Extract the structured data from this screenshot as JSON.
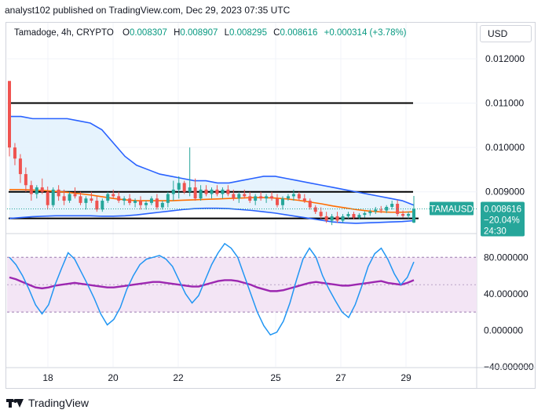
{
  "header": {
    "publisher": "analyst102 published on TradingView.com, Dec 29, 2023 07:35 UTC"
  },
  "legend": {
    "symbol": "Tamadoge, 4h, CRYPTO",
    "o_label": "O",
    "o_value": "0.008307",
    "h_label": "H",
    "h_value": "0.008907",
    "l_label": "L",
    "l_value": "0.008295",
    "c_label": "C",
    "c_value": "0.008616",
    "change": "+0.000314 (+3.78%)"
  },
  "currency_button": "USD",
  "footer": {
    "brand": "TradingView"
  },
  "colors": {
    "bull": "#26a69a",
    "bear": "#ef5350",
    "bb_band": "#2962ff",
    "bb_basis": "#ff6d00",
    "bb_fill": "#e3f2fd",
    "stoch_k": "#2196f3",
    "stoch_d": "#9c27b0",
    "rsi_fill": "#f3e5f5",
    "badge": "#26a69a"
  },
  "chart_data": [
    {
      "type": "candlestick",
      "symbol": "TAMAUSD",
      "y_axis": {
        "min": 0.0082,
        "max": 0.0123,
        "ticks": [
          "0.012000",
          "0.011000",
          "0.010000",
          "0.009000"
        ]
      },
      "x_axis": {
        "ticks": [
          "18",
          "20",
          "22",
          "25",
          "27",
          "29"
        ]
      },
      "price_badge": {
        "symbol": "TAMAUSD",
        "price": "0.008616",
        "change": "−20.04%",
        "countdown": "24:30"
      },
      "horizontal_lines": [
        0.011,
        0.009,
        0.0084
      ],
      "candles": [
        [
          0.0115,
          0.01149,
          0.0098,
          0.01
        ],
        [
          0.01,
          0.0101,
          0.0096,
          0.00975
        ],
        [
          0.00975,
          0.00985,
          0.0092,
          0.0094
        ],
        [
          0.0094,
          0.00955,
          0.009,
          0.00915
        ],
        [
          0.00915,
          0.00925,
          0.0088,
          0.00895
        ],
        [
          0.00895,
          0.00915,
          0.00885,
          0.0091
        ],
        [
          0.0091,
          0.0093,
          0.00895,
          0.009
        ],
        [
          0.009,
          0.00912,
          0.0086,
          0.0087
        ],
        [
          0.0087,
          0.0091,
          0.00865,
          0.00905
        ],
        [
          0.00905,
          0.00915,
          0.0088,
          0.0089
        ],
        [
          0.0089,
          0.00905,
          0.0087,
          0.0088
        ],
        [
          0.0088,
          0.009,
          0.00875,
          0.00895
        ],
        [
          0.00895,
          0.0091,
          0.00885,
          0.0089
        ],
        [
          0.0089,
          0.009,
          0.0087,
          0.00875
        ],
        [
          0.00875,
          0.0089,
          0.0086,
          0.00885
        ],
        [
          0.00885,
          0.009,
          0.00875,
          0.0088
        ],
        [
          0.0088,
          0.0089,
          0.00855,
          0.0086
        ],
        [
          0.0086,
          0.00885,
          0.00855,
          0.0088
        ],
        [
          0.0088,
          0.009,
          0.00875,
          0.00895
        ],
        [
          0.00895,
          0.00905,
          0.00885,
          0.0089
        ],
        [
          0.0089,
          0.009,
          0.00875,
          0.0088
        ],
        [
          0.0088,
          0.0089,
          0.0087,
          0.00885
        ],
        [
          0.00885,
          0.00895,
          0.0087,
          0.00875
        ],
        [
          0.00875,
          0.00885,
          0.00865,
          0.0088
        ],
        [
          0.0088,
          0.0089,
          0.0086,
          0.0087
        ],
        [
          0.0087,
          0.0088,
          0.0086,
          0.00875
        ],
        [
          0.00875,
          0.0089,
          0.0087,
          0.00885
        ],
        [
          0.00885,
          0.00895,
          0.0086,
          0.00865
        ],
        [
          0.00865,
          0.0088,
          0.0086,
          0.00875
        ],
        [
          0.00875,
          0.009,
          0.00865,
          0.00895
        ],
        [
          0.00895,
          0.00925,
          0.0088,
          0.00905
        ],
        [
          0.00905,
          0.00935,
          0.00885,
          0.0092
        ],
        [
          0.0092,
          0.00925,
          0.00895,
          0.009
        ],
        [
          0.009,
          0.01,
          0.0089,
          0.0091
        ],
        [
          0.0091,
          0.0093,
          0.0088,
          0.00885
        ],
        [
          0.00885,
          0.00915,
          0.0088,
          0.00905
        ],
        [
          0.00905,
          0.00915,
          0.0089,
          0.00895
        ],
        [
          0.00895,
          0.0091,
          0.00885,
          0.00905
        ],
        [
          0.00905,
          0.00915,
          0.0089,
          0.00895
        ],
        [
          0.00895,
          0.0091,
          0.00885,
          0.00905
        ],
        [
          0.00905,
          0.00915,
          0.0089,
          0.00895
        ],
        [
          0.00895,
          0.00905,
          0.0088,
          0.00885
        ],
        [
          0.00885,
          0.009,
          0.00875,
          0.00895
        ],
        [
          0.00895,
          0.00905,
          0.00885,
          0.0089
        ],
        [
          0.0089,
          0.009,
          0.00875,
          0.0088
        ],
        [
          0.0088,
          0.00895,
          0.0087,
          0.0089
        ],
        [
          0.0089,
          0.009,
          0.0088,
          0.00885
        ],
        [
          0.00885,
          0.00895,
          0.00875,
          0.0089
        ],
        [
          0.0089,
          0.009,
          0.0088,
          0.00885
        ],
        [
          0.00885,
          0.00895,
          0.00865,
          0.0087
        ],
        [
          0.0087,
          0.0089,
          0.0086,
          0.00885
        ],
        [
          0.00885,
          0.00895,
          0.0088,
          0.0089
        ],
        [
          0.0089,
          0.00905,
          0.0088,
          0.00895
        ],
        [
          0.00895,
          0.009,
          0.0088,
          0.00885
        ],
        [
          0.00885,
          0.00895,
          0.00875,
          0.0088
        ],
        [
          0.0088,
          0.00885,
          0.0086,
          0.00865
        ],
        [
          0.00865,
          0.0087,
          0.0085,
          0.00855
        ],
        [
          0.00855,
          0.00865,
          0.0084,
          0.00845
        ],
        [
          0.00845,
          0.00855,
          0.0083,
          0.00835
        ],
        [
          0.00835,
          0.0085,
          0.00825,
          0.00845
        ],
        [
          0.00845,
          0.00855,
          0.0083,
          0.00835
        ],
        [
          0.00835,
          0.0085,
          0.0083,
          0.00845
        ],
        [
          0.00845,
          0.00855,
          0.0084,
          0.0085
        ],
        [
          0.0085,
          0.00855,
          0.00838,
          0.00842
        ],
        [
          0.00842,
          0.00852,
          0.00838,
          0.00848
        ],
        [
          0.00848,
          0.00856,
          0.00842,
          0.00852
        ],
        [
          0.00852,
          0.0086,
          0.00846,
          0.00856
        ],
        [
          0.00856,
          0.00866,
          0.0085,
          0.0086
        ],
        [
          0.0086,
          0.00868,
          0.00852,
          0.00858
        ],
        [
          0.00858,
          0.0087,
          0.00852,
          0.00866
        ],
        [
          0.00866,
          0.0088,
          0.0086,
          0.00873
        ],
        [
          0.00873,
          0.00882,
          0.00845,
          0.0085
        ],
        [
          0.0085,
          0.00858,
          0.00842,
          0.00846
        ],
        [
          0.00846,
          0.00855,
          0.0084,
          0.0085
        ],
        [
          0.008307,
          0.008907,
          0.008295,
          0.008616
        ]
      ],
      "bollinger": {
        "upper": [
          0.0107,
          0.0107,
          0.01065,
          0.01065,
          0.01065,
          0.01065,
          0.0106,
          0.01055,
          0.0104,
          0.0101,
          0.0098,
          0.0096,
          0.0095,
          0.0094,
          0.00935,
          0.0093,
          0.00925,
          0.00925,
          0.0092,
          0.0092,
          0.00925,
          0.0093,
          0.00935,
          0.00935,
          0.0093,
          0.00925,
          0.0092,
          0.00915,
          0.0091,
          0.00905,
          0.009,
          0.00895,
          0.0089,
          0.00885,
          0.0088,
          0.0087
        ],
        "basis": [
          0.00905,
          0.00905,
          0.00904,
          0.00903,
          0.00901,
          0.00899,
          0.00896,
          0.00893,
          0.00889,
          0.00885,
          0.00882,
          0.0088,
          0.0088,
          0.0088,
          0.0088,
          0.00881,
          0.00882,
          0.00883,
          0.00884,
          0.00885,
          0.00886,
          0.00887,
          0.00887,
          0.00886,
          0.00884,
          0.00881,
          0.00877,
          0.00873,
          0.00868,
          0.00864,
          0.0086,
          0.00857,
          0.00855,
          0.00854,
          0.00854,
          0.00855
        ],
        "lower": [
          0.0084,
          0.00842,
          0.00844,
          0.00845,
          0.00846,
          0.00846,
          0.00846,
          0.00846,
          0.00845,
          0.00845,
          0.00846,
          0.00848,
          0.00851,
          0.00854,
          0.00857,
          0.0086,
          0.00862,
          0.00863,
          0.00863,
          0.00862,
          0.0086,
          0.00858,
          0.00855,
          0.00852,
          0.00848,
          0.00844,
          0.0084,
          0.00836,
          0.00832,
          0.0083,
          0.00829,
          0.0083,
          0.00831,
          0.00832,
          0.00833,
          0.00835
        ]
      }
    },
    {
      "type": "line",
      "title": "",
      "y_axis": {
        "min": -40,
        "max": 100,
        "ticks": [
          "80.000000",
          "40.000000",
          "0.000000",
          "−40.000000"
        ]
      },
      "band": [
        20,
        80
      ],
      "series": [
        {
          "values": [
            80,
            72,
            60,
            45,
            28,
            18,
            28,
            50,
            68,
            85,
            78,
            64,
            50,
            35,
            18,
            6,
            12,
            25,
            45,
            60,
            72,
            78,
            80,
            82,
            78,
            70,
            55,
            40,
            30,
            38,
            55,
            72,
            85,
            95,
            90,
            80,
            60,
            40,
            20,
            5,
            -5,
            -2,
            10,
            30,
            55,
            78,
            90,
            80,
            60,
            45,
            32,
            20,
            14,
            28,
            48,
            70,
            84,
            90,
            78,
            62,
            50,
            58,
            75
          ]
        },
        {
          "values": [
            58,
            56,
            53,
            50,
            47,
            46,
            47,
            49,
            50,
            51,
            52,
            51,
            50,
            49,
            48,
            47,
            47,
            48,
            49,
            50,
            51,
            52,
            53,
            53,
            52,
            51,
            50,
            49,
            48,
            48,
            50,
            52,
            54,
            55,
            55,
            54,
            52,
            50,
            47,
            45,
            43,
            43,
            44,
            46,
            48,
            50,
            52,
            53,
            52,
            51,
            50,
            49,
            49,
            50,
            51,
            52,
            53,
            54,
            52,
            51,
            50,
            52,
            55
          ]
        }
      ]
    }
  ]
}
